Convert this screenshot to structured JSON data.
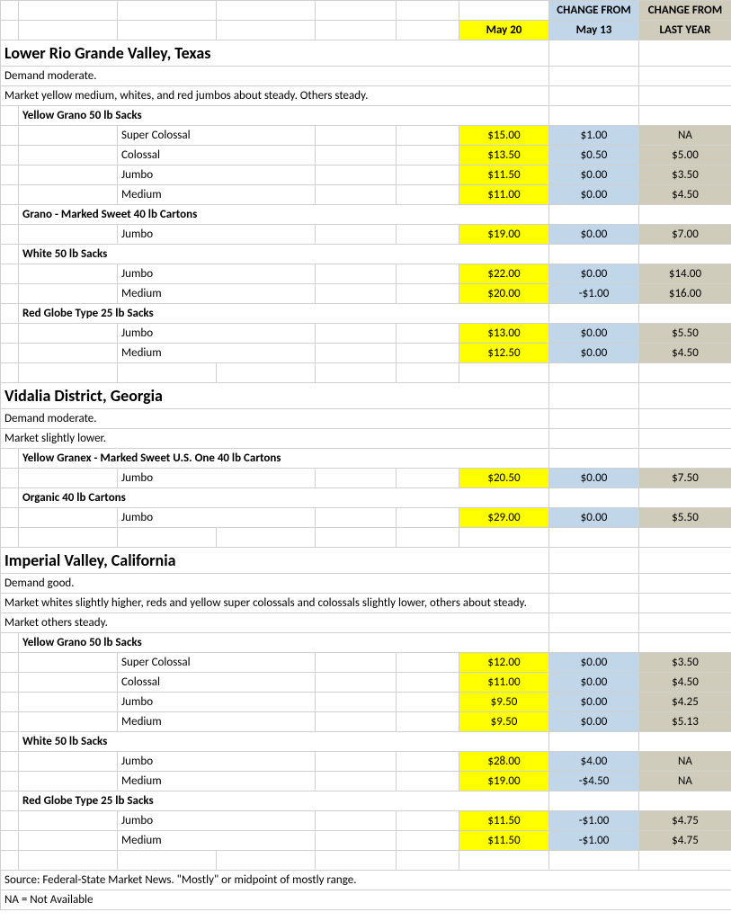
{
  "colors": {
    "yellow": "#ffff00",
    "blue": "#c1d6e9",
    "tan": "#d0ccbc",
    "grid": "#d0d0d0",
    "bg": "#ffffff"
  },
  "header": {
    "change_from": "CHANGE FROM",
    "may20": "May 20",
    "may13": "May 13",
    "last_year": "LAST YEAR"
  },
  "regions": [
    {
      "title": "Lower Rio Grande Valley, Texas",
      "notes": [
        "Demand moderate.",
        "Market yellow medium, whites, and red jumbos about steady. Others steady."
      ],
      "groups": [
        {
          "label": "Yellow Grano 50 lb Sacks",
          "rows": [
            {
              "size": "Super Colossal",
              "price": "$15.00",
              "wk": "$1.00",
              "yr": "NA"
            },
            {
              "size": "Colossal",
              "price": "$13.50",
              "wk": "$0.50",
              "yr": "$5.00"
            },
            {
              "size": "Jumbo",
              "price": "$11.50",
              "wk": "$0.00",
              "yr": "$3.50"
            },
            {
              "size": "Medium",
              "price": "$11.00",
              "wk": "$0.00",
              "yr": "$4.50"
            }
          ]
        },
        {
          "label": "Grano - Marked Sweet 40 lb Cartons",
          "rows": [
            {
              "size": "Jumbo",
              "price": "$19.00",
              "wk": "$0.00",
              "yr": "$7.00"
            }
          ]
        },
        {
          "label": "White 50 lb Sacks",
          "rows": [
            {
              "size": "Jumbo",
              "price": "$22.00",
              "wk": "$0.00",
              "yr": "$14.00"
            },
            {
              "size": "Medium",
              "price": "$20.00",
              "wk": "-$1.00",
              "yr": "$16.00"
            }
          ]
        },
        {
          "label": "Red Globe Type 25 lb Sacks",
          "rows": [
            {
              "size": "Jumbo",
              "price": "$13.00",
              "wk": "$0.00",
              "yr": "$5.50"
            },
            {
              "size": "Medium",
              "price": "$12.50",
              "wk": "$0.00",
              "yr": "$4.50"
            }
          ]
        }
      ]
    },
    {
      "title": "Vidalia District, Georgia",
      "notes": [
        "Demand moderate.",
        "Market slightly lower."
      ],
      "groups": [
        {
          "label": "Yellow Granex - Marked Sweet U.S. One 40 lb Cartons",
          "rows": [
            {
              "size": "Jumbo",
              "price": "$20.50",
              "wk": "$0.00",
              "yr": "$7.50"
            }
          ]
        },
        {
          "label": "Organic 40 lb Cartons",
          "rows": [
            {
              "size": "Jumbo",
              "price": "$29.00",
              "wk": "$0.00",
              "yr": "$5.50"
            }
          ]
        }
      ]
    },
    {
      "title": "Imperial Valley, California",
      "notes": [
        "Demand good.",
        "Market whites slightly higher, reds and yellow super colossals and colossals slightly lower, others about steady.",
        "Market others steady."
      ],
      "groups": [
        {
          "label": "Yellow Grano 50 lb Sacks",
          "rows": [
            {
              "size": "Super Colossal",
              "price": "$12.00",
              "wk": "$0.00",
              "yr": "$3.50"
            },
            {
              "size": "Colossal",
              "price": "$11.00",
              "wk": "$0.00",
              "yr": "$4.50"
            },
            {
              "size": "Jumbo",
              "price": "$9.50",
              "wk": "$0.00",
              "yr": "$4.25"
            },
            {
              "size": "Medium",
              "price": "$9.50",
              "wk": "$0.00",
              "yr": "$5.13"
            }
          ]
        },
        {
          "label": "White 50 lb Sacks",
          "rows": [
            {
              "size": "Jumbo",
              "price": "$28.00",
              "wk": "$4.00",
              "yr": "NA"
            },
            {
              "size": "Medium",
              "price": "$19.00",
              "wk": "-$4.50",
              "yr": "NA"
            }
          ]
        },
        {
          "label": "Red Globe Type 25 lb Sacks",
          "rows": [
            {
              "size": "Jumbo",
              "price": "$11.50",
              "wk": "-$1.00",
              "yr": "$4.75"
            },
            {
              "size": "Medium",
              "price": "$11.50",
              "wk": "-$1.00",
              "yr": "$4.75"
            }
          ]
        }
      ]
    }
  ],
  "footer": {
    "source": "Source: Federal-State Market News. \"Mostly\" or midpoint of mostly range.",
    "na": "NA = Not Available"
  }
}
